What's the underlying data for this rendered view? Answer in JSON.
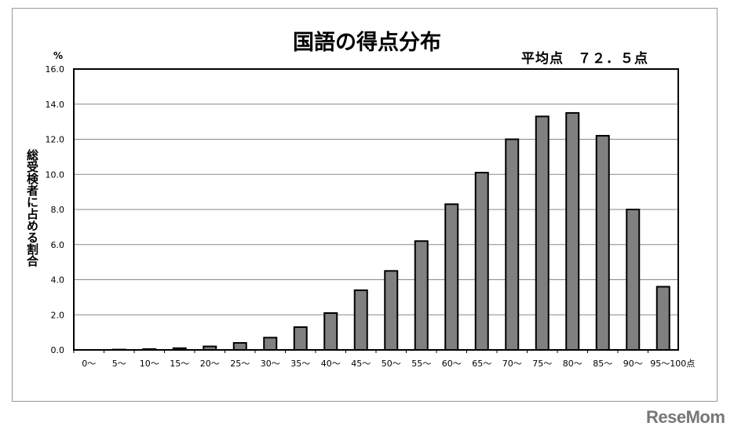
{
  "chart_data": {
    "type": "bar",
    "title": "国語の得点分布",
    "annotation": "平均点　７２．５点",
    "ylabel": "総受検者に占める割合",
    "yunit": "%",
    "xunit": "点",
    "ylim": [
      0,
      16
    ],
    "yticks": [
      "0.0",
      "2.0",
      "4.0",
      "6.0",
      "8.0",
      "10.0",
      "12.0",
      "14.0",
      "16.0"
    ],
    "grid": true,
    "categories": [
      "0～",
      "5～",
      "10～",
      "15～",
      "20～",
      "25～",
      "30～",
      "35～",
      "40～",
      "45～",
      "50～",
      "55～",
      "60～",
      "65～",
      "70～",
      "75～",
      "80～",
      "85～",
      "90～",
      "95～100"
    ],
    "values": [
      0.0,
      0.02,
      0.05,
      0.1,
      0.2,
      0.4,
      0.7,
      1.3,
      2.1,
      3.4,
      4.5,
      6.2,
      8.3,
      10.1,
      12.0,
      13.3,
      13.5,
      12.2,
      8.0,
      3.6
    ],
    "bar_color": "#808080"
  },
  "logo": "ReseMom"
}
